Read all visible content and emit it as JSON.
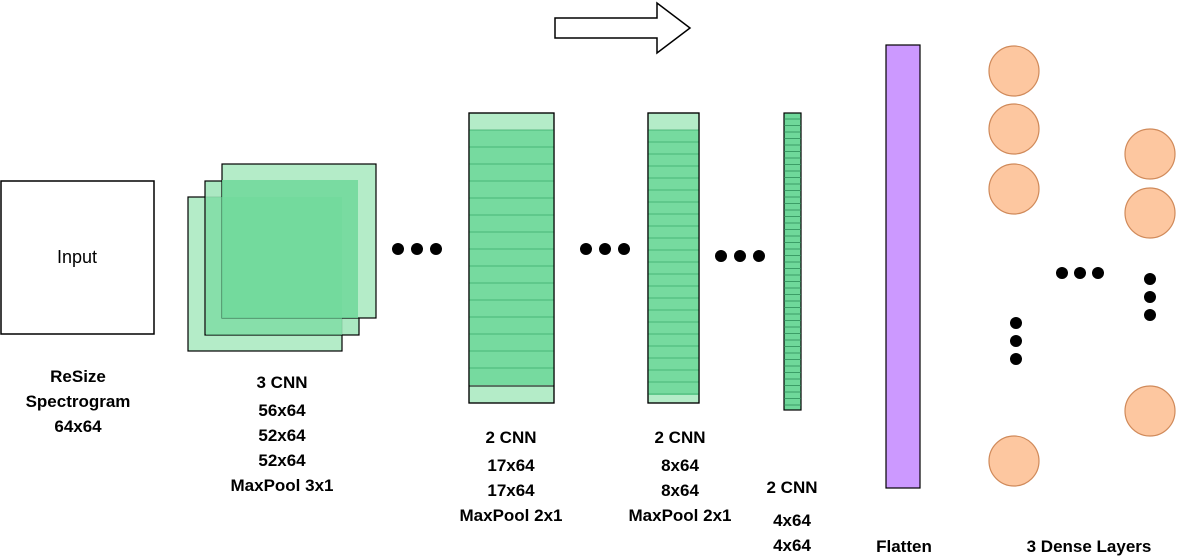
{
  "input_box": {
    "label": "Input"
  },
  "captions": {
    "resize": [
      "ReSize",
      "Spectrogram",
      "64x64"
    ],
    "block1": {
      "title": "3 CNN",
      "lines": [
        "56x64",
        "52x64",
        "52x64",
        "MaxPool 3x1"
      ]
    },
    "block2": {
      "title": "2 CNN",
      "lines": [
        "17x64",
        "17x64",
        "MaxPool 2x1"
      ]
    },
    "block3": {
      "title": "2 CNN",
      "lines": [
        "8x64",
        "8x64",
        "MaxPool 2x1"
      ]
    },
    "block4": {
      "title": "2 CNN",
      "lines": [
        "4x64",
        "4x64"
      ]
    },
    "flatten": "Flatten",
    "dense": "3 Dense Layers"
  },
  "colors": {
    "cnn_fill": "#6fd89a",
    "cnn_light": "#b4ecc8",
    "cnn_stroke": "#000000",
    "flatten_fill": "#cc99ff",
    "neuron_fill": "#fdc7a0",
    "neuron_stroke": "#d08a5a"
  },
  "icons": [
    "flow-arrow-icon",
    "ellipsis-icon"
  ]
}
